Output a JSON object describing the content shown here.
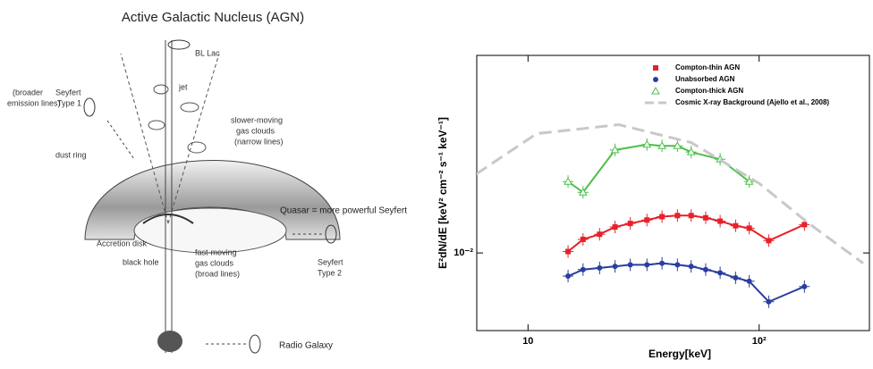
{
  "diagram": {
    "title": "Active Galactic Nucleus (AGN)",
    "labels": [
      "BL Lac",
      "jet",
      "Seyfert",
      "Type 1",
      "(broader",
      "emission lines)",
      "slower-moving",
      "gas clouds",
      "(narrow lines)",
      "dust ring",
      "Quasar = more powerful Seyfert",
      "Accretion disk",
      "black hole",
      "fast-moving",
      "gas clouds",
      "(broad lines)",
      "Seyfert",
      "Type 2",
      "Radio Galaxy"
    ]
  },
  "chart_data": {
    "type": "scatter",
    "x_label": "Energy[keV]",
    "y_label": "E²dN/dE [keV² cm⁻² s⁻¹ keV⁻¹]",
    "log_x": true,
    "log_y": true,
    "xlim": [
      6,
      300
    ],
    "ylim": [
      0.0058,
      0.04
    ],
    "xticks": [
      {
        "value": 10,
        "label": "10"
      },
      {
        "value": 100,
        "label": "10²"
      }
    ],
    "yticks": [
      {
        "value": 0.01,
        "label": "10⁻²"
      }
    ],
    "legend": "upper right",
    "series": [
      {
        "name": "Compton-thin AGN",
        "color": "#e8202a",
        "marker": "square",
        "x": [
          14.9,
          17.3,
          20.4,
          23.8,
          27.7,
          32.7,
          38.0,
          44.3,
          50.8,
          58.7,
          67.8,
          79.1,
          90.6,
          110,
          157
        ],
        "values": [
          0.0101,
          0.011,
          0.0114,
          0.012,
          0.0123,
          0.0126,
          0.0129,
          0.013,
          0.013,
          0.0128,
          0.0125,
          0.0121,
          0.0119,
          0.0109,
          0.0122
        ]
      },
      {
        "name": "Unabsorbed AGN",
        "color": "#2a3ea0",
        "marker": "circle",
        "x": [
          14.9,
          17.3,
          20.4,
          23.8,
          27.7,
          32.7,
          38.0,
          44.3,
          50.8,
          58.7,
          67.8,
          79.1,
          90.6,
          110,
          157
        ],
        "values": [
          0.0085,
          0.0089,
          0.009,
          0.0091,
          0.0092,
          0.0092,
          0.0093,
          0.0092,
          0.0091,
          0.0089,
          0.0087,
          0.0084,
          0.0082,
          0.0071,
          0.0079
        ]
      },
      {
        "name": "Compton-thick AGN",
        "color": "#4cc04a",
        "marker": "triangle",
        "x": [
          14.9,
          17.3,
          23.8,
          32.7,
          38.0,
          44.3,
          50.8,
          67.8,
          90.6
        ],
        "values": [
          0.0165,
          0.0153,
          0.0206,
          0.0214,
          0.0212,
          0.0212,
          0.0203,
          0.0193,
          0.0165
        ]
      },
      {
        "name": "Cosmic X-ray Background (Ajello et al., 2008)",
        "color": "#c8c8c8",
        "marker": "dashed-line",
        "x": [
          5.97,
          10.9,
          24.7,
          50.8,
          100,
          164,
          282
        ],
        "values": [
          0.0174,
          0.0231,
          0.0246,
          0.0217,
          0.0163,
          0.0123,
          0.0093
        ]
      }
    ]
  }
}
